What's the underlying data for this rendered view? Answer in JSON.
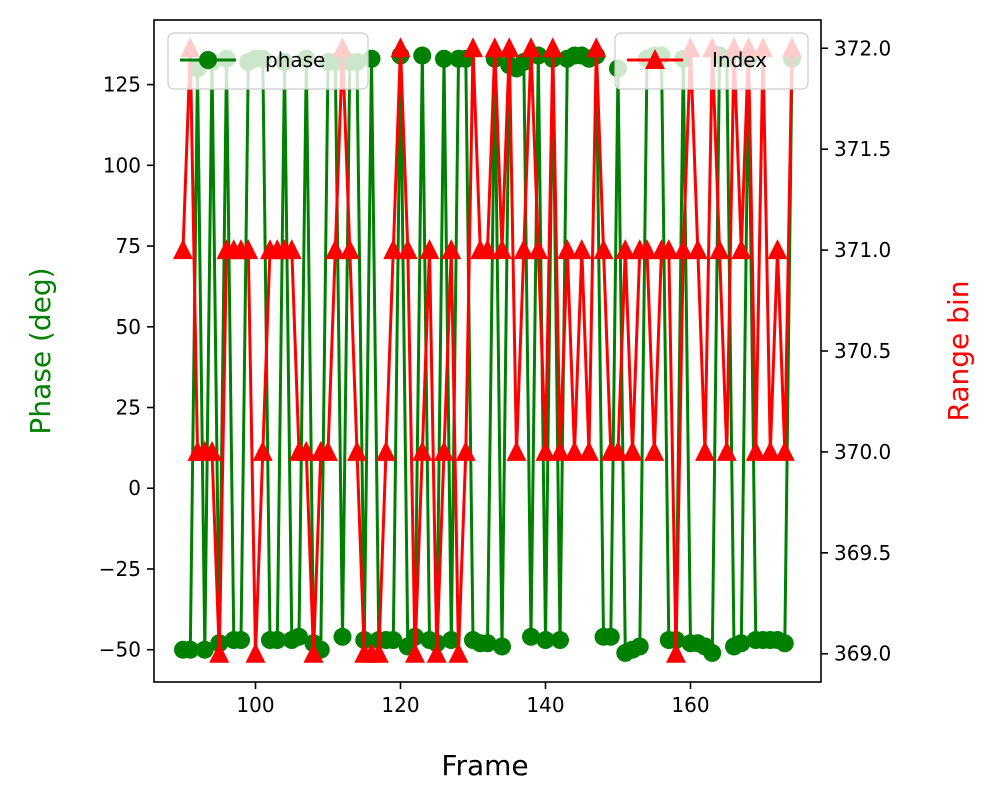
{
  "chart_data": {
    "type": "line",
    "title": "",
    "xlabel": "Frame",
    "ylabel_left": "Phase (deg)",
    "ylabel_right": "Range bin",
    "xlim": [
      86,
      178
    ],
    "ylim_left": [
      -60,
      145
    ],
    "ylim_right": [
      368.86,
      372.14
    ],
    "x_ticks": [
      100,
      120,
      140,
      160
    ],
    "x_tick_labels": [
      "100",
      "120",
      "140",
      "160"
    ],
    "y_left_ticks": [
      -50,
      -25,
      0,
      25,
      50,
      75,
      100,
      125
    ],
    "y_left_tick_labels": [
      "−50",
      "−25",
      "0",
      "25",
      "50",
      "75",
      "100",
      "125"
    ],
    "y_right_ticks": [
      369.0,
      369.5,
      370.0,
      370.5,
      371.0,
      371.5,
      372.0
    ],
    "y_right_tick_labels": [
      "369.0",
      "369.5",
      "370.0",
      "370.5",
      "371.0",
      "371.5",
      "372.0"
    ],
    "grid": false,
    "x": [
      90,
      91,
      92,
      93,
      94,
      95,
      96,
      97,
      98,
      99,
      100,
      101,
      102,
      103,
      104,
      105,
      106,
      107,
      108,
      109,
      110,
      111,
      112,
      113,
      114,
      115,
      116,
      117,
      118,
      119,
      120,
      121,
      122,
      123,
      124,
      125,
      126,
      127,
      128,
      129,
      130,
      131,
      132,
      133,
      134,
      135,
      136,
      137,
      138,
      139,
      140,
      141,
      142,
      143,
      144,
      145,
      146,
      147,
      148,
      149,
      150,
      151,
      152,
      153,
      154,
      155,
      156,
      157,
      158,
      159,
      160,
      161,
      162,
      163,
      164,
      165,
      166,
      167,
      168,
      169,
      170,
      171,
      172,
      173,
      174
    ],
    "series": [
      {
        "name": "phase",
        "axis": "left",
        "color": "#008000",
        "marker": "circle",
        "values": [
          -50,
          -50,
          130,
          -50,
          132,
          -48,
          133,
          -47,
          -47,
          132,
          133,
          133,
          -47,
          -47,
          132,
          -47,
          -46,
          133,
          -48,
          -50,
          132,
          132,
          -46,
          132,
          132,
          -47,
          133,
          -47,
          -47,
          -47,
          134,
          -49,
          -46,
          134,
          -47,
          -48,
          133,
          -47,
          133,
          133,
          -47,
          -48,
          -48,
          133,
          -49,
          131,
          130,
          132,
          -46,
          134,
          -47,
          133,
          -47,
          133,
          134,
          134,
          133,
          134,
          -46,
          -46,
          130,
          -51,
          -50,
          -49,
          133,
          134,
          134,
          -47,
          -47,
          133,
          -48,
          -48,
          -49,
          -51,
          134,
          133,
          -49,
          -48,
          133,
          -47,
          -47,
          -47,
          -47,
          -48,
          133
        ]
      },
      {
        "name": "Index",
        "axis": "right",
        "color": "#ff0000",
        "marker": "triangle",
        "values": [
          371,
          372,
          370,
          370,
          370,
          369,
          371,
          371,
          371,
          371,
          369,
          370,
          371,
          371,
          371,
          371,
          370,
          370,
          369,
          370,
          370,
          371,
          372,
          371,
          370,
          369,
          369,
          369,
          370,
          371,
          372,
          371,
          369,
          370,
          371,
          369,
          370,
          371,
          369,
          370,
          372,
          371,
          371,
          372,
          371,
          372,
          370,
          371,
          372,
          371,
          370,
          372,
          370,
          371,
          370,
          371,
          370,
          372,
          371,
          370,
          370,
          371,
          370,
          371,
          371,
          370,
          371,
          371,
          369,
          371,
          372,
          371,
          370,
          372,
          371,
          370,
          372,
          371,
          372,
          370,
          372,
          370,
          371,
          370,
          372
        ]
      }
    ],
    "legends": [
      {
        "location": "upper left",
        "entries": [
          "phase"
        ]
      },
      {
        "location": "upper right",
        "entries": [
          "Index"
        ]
      }
    ]
  }
}
